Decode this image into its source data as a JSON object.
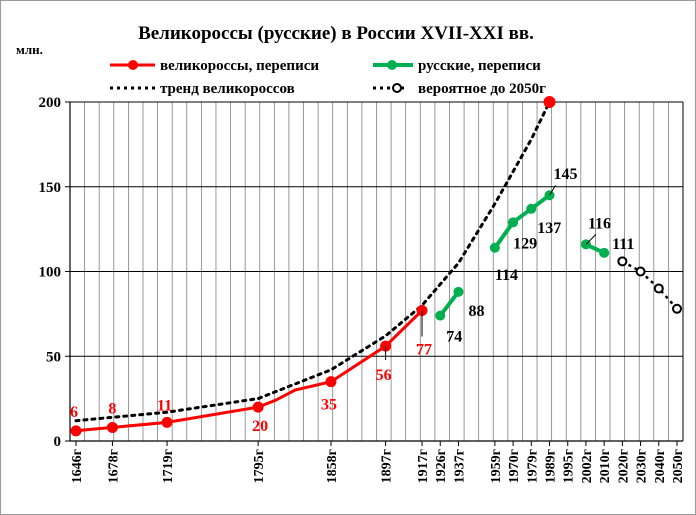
{
  "chart_data": {
    "type": "line",
    "title": "Великороссы  (русские) в России XVII-XXI  вв.",
    "y_unit": "млн.",
    "ylim": [
      0,
      200
    ],
    "y_ticks": [
      0,
      50,
      100,
      150,
      200
    ],
    "grid": "horizontal and vertical",
    "x_tick_labels": [
      "1646г",
      "1678г",
      "1719г",
      "1795г",
      "1858г",
      "1897г",
      "1917г",
      "1926г",
      "1937г",
      "1959г",
      "1970г",
      "1979г",
      "1989г",
      "1995г",
      "2002г",
      "2010г",
      "2020г",
      "2030г",
      "2040г",
      "2050г"
    ],
    "legend": [
      {
        "key": "census_great",
        "label": "великороссы, переписи",
        "color": "#ff0000",
        "style": "solid line with filled markers"
      },
      {
        "key": "census_russian",
        "label": "русские, переписи",
        "color": "#00b050",
        "style": "solid line with filled markers"
      },
      {
        "key": "trend",
        "label": "тренд великороссов",
        "color": "#000000",
        "style": "dotted line"
      },
      {
        "key": "forecast",
        "label": "вероятное до 2050г",
        "color": "#000000",
        "style": "dotted line with hollow markers"
      }
    ],
    "series": [
      {
        "key": "census_great",
        "points": [
          {
            "x": 1646,
            "y": 6,
            "label": "6"
          },
          {
            "x": 1678,
            "y": 8,
            "label": "8"
          },
          {
            "x": 1719,
            "y": 11,
            "label": "11"
          },
          {
            "x": 1795,
            "y": 20,
            "label": "20"
          },
          {
            "x": 1810,
            "y": 24
          },
          {
            "x": 1827,
            "y": 30
          },
          {
            "x": 1858,
            "y": 35,
            "label": "35"
          },
          {
            "x": 1897,
            "y": 56,
            "label": "56"
          },
          {
            "x": 1917,
            "y": 77,
            "label": "77"
          }
        ]
      },
      {
        "key": "census_russian",
        "segments": [
          [
            {
              "x": 1926,
              "y": 74,
              "label": "74"
            },
            {
              "x": 1937,
              "y": 88,
              "label": "88"
            }
          ],
          [
            {
              "x": 1959,
              "y": 114,
              "label": "114"
            },
            {
              "x": 1970,
              "y": 129,
              "label": "129"
            },
            {
              "x": 1979,
              "y": 137,
              "label": "137"
            },
            {
              "x": 1989,
              "y": 145,
              "label": "145"
            }
          ],
          [
            {
              "x": 2002,
              "y": 116,
              "label": "116"
            },
            {
              "x": 2010,
              "y": 111,
              "label": "111"
            }
          ]
        ]
      },
      {
        "key": "trend",
        "points": [
          {
            "x": 1646,
            "y": 12
          },
          {
            "x": 1678,
            "y": 14
          },
          {
            "x": 1719,
            "y": 17
          },
          {
            "x": 1795,
            "y": 25
          },
          {
            "x": 1858,
            "y": 42
          },
          {
            "x": 1897,
            "y": 62
          },
          {
            "x": 1917,
            "y": 80
          },
          {
            "x": 1937,
            "y": 105
          },
          {
            "x": 1959,
            "y": 140
          },
          {
            "x": 1979,
            "y": 178
          },
          {
            "x": 1989,
            "y": 200
          }
        ]
      },
      {
        "key": "forecast",
        "points": [
          {
            "x": 2020,
            "y": 106
          },
          {
            "x": 2030,
            "y": 100
          },
          {
            "x": 2040,
            "y": 90
          },
          {
            "x": 2050,
            "y": 78
          }
        ]
      }
    ],
    "highlight_point": {
      "x": 1989,
      "y": 200,
      "color": "#ff0000"
    }
  }
}
